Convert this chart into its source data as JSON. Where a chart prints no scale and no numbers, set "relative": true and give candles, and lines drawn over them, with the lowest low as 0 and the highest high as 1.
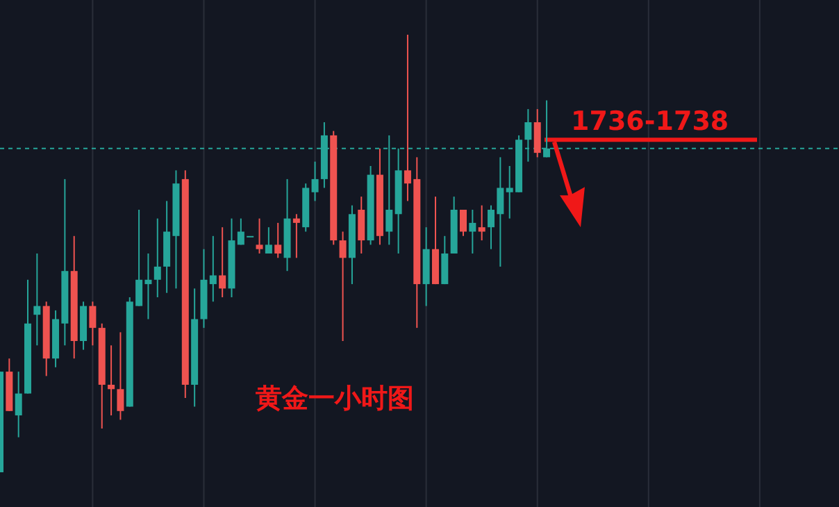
{
  "chart_data": {
    "type": "candlestick",
    "title": "黄金一小时图",
    "relative": true,
    "grid": "x",
    "categories": [
      null,
      null,
      null,
      null,
      null,
      null,
      null,
      null,
      null,
      null,
      null,
      null,
      null,
      null,
      null,
      null,
      null,
      null,
      null,
      null,
      null,
      null,
      null,
      null,
      null,
      null,
      null,
      null,
      null,
      null,
      null,
      null,
      null,
      null,
      null,
      null,
      null,
      null,
      null,
      null,
      null,
      null,
      null,
      null,
      null,
      null,
      null,
      null,
      null,
      null,
      null,
      null,
      null,
      null,
      null,
      null,
      null,
      null,
      null,
      null,
      null,
      null,
      null,
      null,
      null,
      null,
      null,
      null,
      null,
      null,
      null,
      null,
      null,
      null,
      null,
      null,
      null,
      null,
      null,
      null,
      null,
      null,
      null,
      null,
      null,
      null,
      null,
      null,
      null,
      null
    ],
    "ohlc": [
      [
        0,
        0.23,
        0,
        0.23
      ],
      [
        0.23,
        0.26,
        0.14,
        0.14
      ],
      [
        0.13,
        0.23,
        0.08,
        0.18
      ],
      [
        0.18,
        0.44,
        0.18,
        0.34
      ],
      [
        0.36,
        0.5,
        0.29,
        0.38
      ],
      [
        0.38,
        0.39,
        0.22,
        0.26
      ],
      [
        0.26,
        0.37,
        0.24,
        0.35
      ],
      [
        0.34,
        0.67,
        0.29,
        0.46
      ],
      [
        0.46,
        0.54,
        0.26,
        0.3
      ],
      [
        0.3,
        0.39,
        0.28,
        0.38
      ],
      [
        0.38,
        0.39,
        0.29,
        0.33
      ],
      [
        0.33,
        0.34,
        0.1,
        0.2
      ],
      [
        0.2,
        0.29,
        0.13,
        0.19
      ],
      [
        0.19,
        0.32,
        0.12,
        0.14
      ],
      [
        0.15,
        0.4,
        0.15,
        0.39
      ],
      [
        0.38,
        0.6,
        0.38,
        0.44
      ],
      [
        0.43,
        0.5,
        0.35,
        0.44
      ],
      [
        0.44,
        0.58,
        0.4,
        0.47
      ],
      [
        0.47,
        0.62,
        0.41,
        0.55
      ],
      [
        0.54,
        0.69,
        0.42,
        0.66
      ],
      [
        0.67,
        0.69,
        0.17,
        0.2
      ],
      [
        0.2,
        0.42,
        0.15,
        0.35
      ],
      [
        0.35,
        0.51,
        0.33,
        0.44
      ],
      [
        0.43,
        0.54,
        0.39,
        0.45
      ],
      [
        0.45,
        0.56,
        0.4,
        0.42
      ],
      [
        0.42,
        0.58,
        0.4,
        0.53
      ],
      [
        0.52,
        0.58,
        0.52,
        0.55
      ],
      [
        0.54,
        0.54,
        0.54,
        0.54
      ],
      [
        0.52,
        0.58,
        0.5,
        0.51
      ],
      [
        0.5,
        0.56,
        0.5,
        0.52
      ],
      [
        0.52,
        0.57,
        0.49,
        0.5
      ],
      [
        0.49,
        0.67,
        0.46,
        0.58
      ],
      [
        0.58,
        0.59,
        0.49,
        0.57
      ],
      [
        0.56,
        0.66,
        0.55,
        0.65
      ],
      [
        0.64,
        0.71,
        0.62,
        0.67
      ],
      [
        0.67,
        0.8,
        0.65,
        0.77
      ],
      [
        0.77,
        0.78,
        0.52,
        0.53
      ],
      [
        0.53,
        0.55,
        0.3,
        0.49
      ],
      [
        0.49,
        0.61,
        0.43,
        0.59
      ],
      [
        0.6,
        0.63,
        0.5,
        0.53
      ],
      [
        0.53,
        0.7,
        0.52,
        0.68
      ],
      [
        0.68,
        0.74,
        0.52,
        0.54
      ],
      [
        0.55,
        0.77,
        0.52,
        0.6
      ],
      [
        0.59,
        0.74,
        0.5,
        0.69
      ],
      [
        0.69,
        1,
        0.62,
        0.66
      ],
      [
        0.67,
        0.72,
        0.33,
        0.43
      ],
      [
        0.43,
        0.56,
        0.38,
        0.51
      ],
      [
        0.51,
        0.63,
        0.43,
        0.43
      ],
      [
        0.43,
        0.54,
        0.43,
        0.5
      ],
      [
        0.5,
        0.63,
        0.5,
        0.6
      ],
      [
        0.6,
        0.6,
        0.54,
        0.55
      ],
      [
        0.55,
        0.6,
        0.5,
        0.57
      ],
      [
        0.56,
        0.61,
        0.53,
        0.55
      ],
      [
        0.56,
        0.61,
        0.51,
        0.6
      ],
      [
        0.59,
        0.72,
        0.47,
        0.65
      ],
      [
        0.64,
        0.7,
        0.58,
        0.65
      ],
      [
        0.64,
        0.77,
        0.64,
        0.76
      ],
      [
        0.76,
        0.83,
        0.71,
        0.8
      ],
      [
        0.8,
        0.83,
        0.72,
        0.73
      ],
      [
        0.72,
        0.85,
        0.72,
        0.74
      ],
      null,
      null,
      null,
      null,
      null,
      null,
      null,
      null,
      null,
      null,
      null,
      null,
      null,
      null,
      null,
      null,
      null,
      null,
      null,
      null,
      null,
      null,
      null,
      null,
      null,
      null,
      null,
      null,
      null,
      null
    ],
    "colors": [
      "#26a69a",
      "#ef5350",
      "#26a69a",
      "#26a69a",
      "#26a69a",
      "#ef5350",
      "#26a69a",
      "#26a69a",
      "#ef5350",
      "#26a69a",
      "#ef5350",
      "#ef5350",
      "#ef5350",
      "#ef5350",
      "#26a69a",
      "#26a69a",
      "#26a69a",
      "#26a69a",
      "#26a69a",
      "#26a69a",
      "#ef5350",
      "#26a69a",
      "#26a69a",
      "#26a69a",
      "#ef5350",
      "#26a69a",
      "#26a69a",
      "#26a69a",
      "#ef5350",
      "#26a69a",
      "#ef5350",
      "#26a69a",
      "#ef5350",
      "#26a69a",
      "#26a69a",
      "#26a69a",
      "#ef5350",
      "#ef5350",
      "#26a69a",
      "#ef5350",
      "#26a69a",
      "#ef5350",
      "#26a69a",
      "#26a69a",
      "#ef5350",
      "#ef5350",
      "#26a69a",
      "#ef5350",
      "#26a69a",
      "#26a69a",
      "#ef5350",
      "#26a69a",
      "#ef5350",
      "#26a69a",
      "#26a69a",
      "#26a69a",
      "#26a69a",
      "#26a69a",
      "#ef5350",
      "#26a69a",
      null,
      null,
      null,
      null,
      null,
      null,
      null,
      null,
      null,
      null,
      null,
      null,
      null,
      null,
      null,
      null,
      null,
      null,
      null,
      null,
      null,
      null,
      null,
      null,
      null,
      null,
      null,
      null,
      null,
      null
    ],
    "ref_lines": [
      {
        "axis": "y",
        "value": 0.74,
        "color": "#26a69a",
        "line_style": "dashed"
      },
      {
        "axis": "y",
        "value": 0.76,
        "color": "#f01818"
      }
    ],
    "annotations": [
      "1736-1738"
    ]
  }
}
